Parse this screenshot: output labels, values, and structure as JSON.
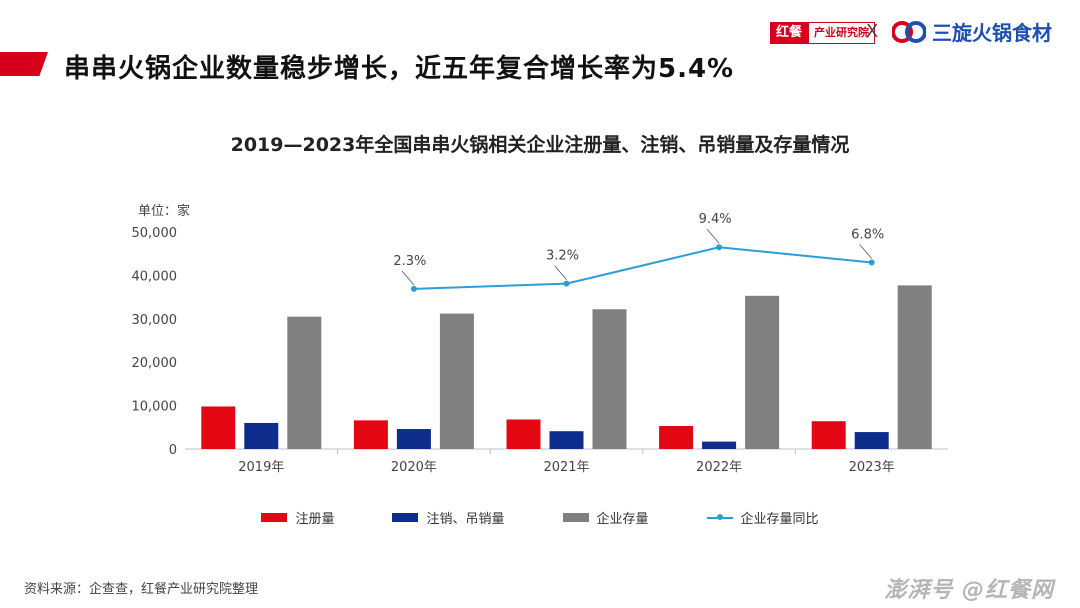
{
  "header": {
    "title": "串串火锅企业数量稳步增长，近五年复合增长率为5.4%",
    "brand_left_badge": "红餐",
    "brand_left_sub": "产业研究院",
    "brand_separator": "X",
    "brand_right_name": "三旋火锅食材"
  },
  "colors": {
    "accent": "#d6001c",
    "registration": "#e30613",
    "cancellation": "#0d2c8c",
    "stock": "#808080",
    "yoy_line": "#2b9fd4"
  },
  "chart_data": {
    "type": "bar",
    "title": "2019—2023年全国串串火锅相关企业注册量、注销、吊销量及存量情况",
    "unit_label": "单位：家",
    "categories": [
      "2019年",
      "2020年",
      "2021年",
      "2022年",
      "2023年"
    ],
    "series": [
      {
        "name": "注册量",
        "values": [
          9800,
          6600,
          6800,
          5300,
          6400
        ]
      },
      {
        "name": "注销、吊销量",
        "values": [
          6000,
          4600,
          4100,
          1700,
          3900
        ]
      },
      {
        "name": "企业存量",
        "values": [
          30500,
          31200,
          32200,
          35300,
          37700
        ]
      }
    ],
    "line_series": {
      "name": "企业存量同比",
      "values": [
        null,
        2.3,
        3.2,
        9.4,
        6.8
      ],
      "labels": [
        "",
        "2.3%",
        "3.2%",
        "9.4%",
        "6.8%"
      ]
    },
    "y_ticks": [
      "0",
      "10,000",
      "20,000",
      "30,000",
      "40,000",
      "50,000"
    ],
    "ylim": [
      0,
      50000
    ],
    "line_range": [
      -25,
      12
    ],
    "grid": false,
    "legend_position": "bottom"
  },
  "footer": {
    "source": "资料来源：企查查，红餐产业研究院整理",
    "watermark": "澎湃号 @红餐网"
  }
}
